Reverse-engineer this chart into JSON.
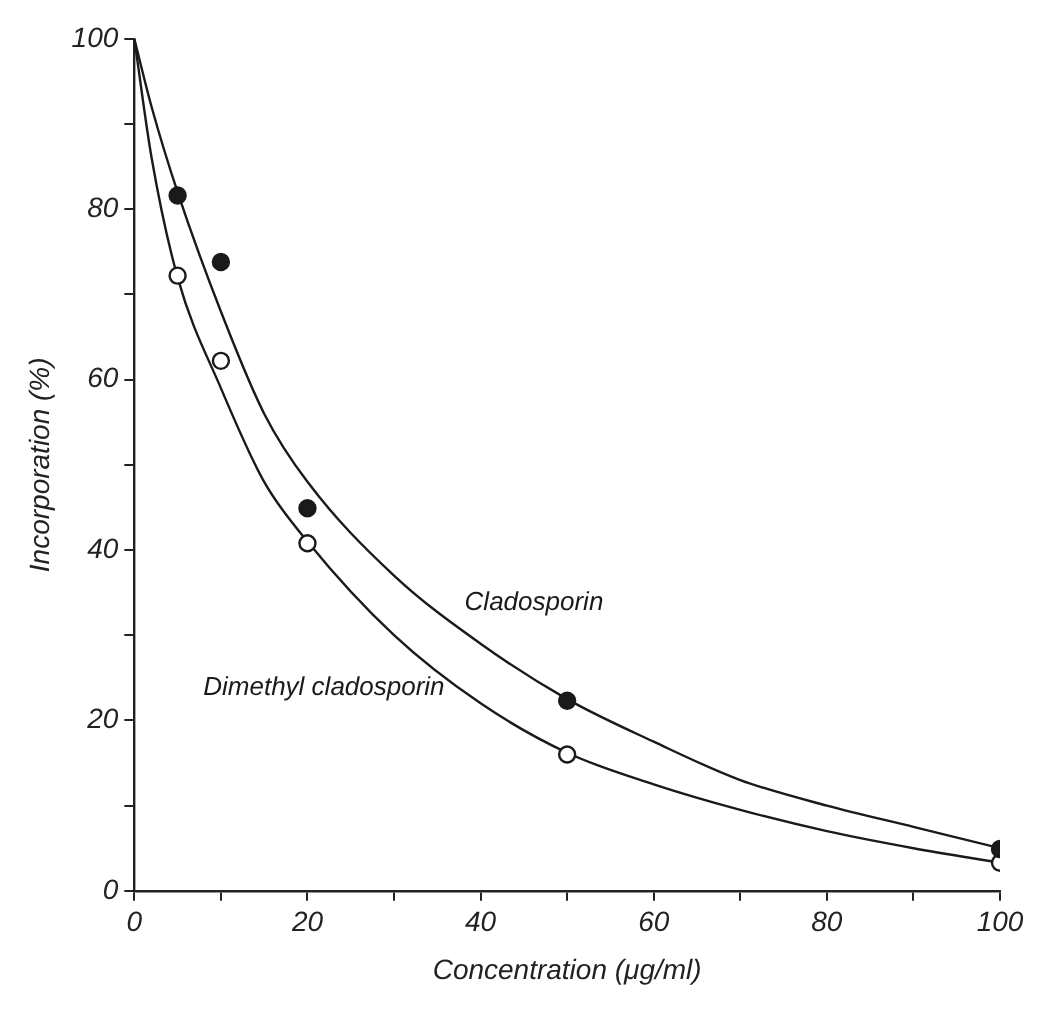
{
  "chart_data": {
    "type": "scatter",
    "xlabel": "Concentration (μg/ml)",
    "ylabel": "Incorporation (%)",
    "xlim": [
      0,
      100
    ],
    "xticks": [
      0,
      {
        "value": 10,
        "label": null
      },
      20,
      {
        "value": 30,
        "label": null
      },
      40,
      {
        "value": 50,
        "label": null
      },
      60,
      {
        "value": 70,
        "label": null
      },
      80,
      {
        "value": 90,
        "label": null
      },
      100
    ],
    "ylim": [
      0,
      100
    ],
    "yticks": [
      0,
      {
        "value": 10,
        "label": null
      },
      20,
      {
        "value": 30,
        "label": null
      },
      40,
      {
        "value": 50,
        "label": null
      },
      60,
      {
        "value": 70,
        "label": null
      },
      80,
      {
        "value": 90,
        "label": null
      },
      100
    ],
    "grid": false,
    "legend": false,
    "marker": "circle",
    "series": [
      {
        "type": "scatter",
        "color": "#1a1a1a",
        "x": [
          5,
          10,
          20,
          50,
          100
        ],
        "values": [
          81.6,
          73.8,
          44.9,
          22.3,
          4.9
        ]
      },
      {
        "type": "scatter",
        "color": "#ffffff",
        "x": [
          5,
          10,
          20,
          50,
          100
        ],
        "values": [
          72.2,
          62.2,
          40.8,
          16,
          3.3
        ]
      },
      {
        "type": "line",
        "name": "Cladosporin",
        "color": "#1a1a1a",
        "marker": "none",
        "x": [
          0,
          2,
          5,
          10,
          15,
          20,
          30,
          40,
          50,
          60,
          70,
          80,
          90,
          100
        ],
        "values": [
          100,
          92,
          82,
          68,
          56,
          48,
          37,
          29,
          22.5,
          17.5,
          13,
          10,
          7.5,
          5
        ]
      },
      {
        "type": "line",
        "name": "Dimethyl cladosporin",
        "color": "#1a1a1a",
        "marker": "none",
        "x": [
          0,
          2,
          5,
          10,
          15,
          20,
          30,
          40,
          50,
          60,
          70,
          80,
          90,
          100
        ],
        "values": [
          100,
          86,
          72,
          59,
          48,
          41,
          30,
          22,
          16.2,
          12.5,
          9.5,
          7,
          5,
          3.3
        ]
      }
    ]
  }
}
